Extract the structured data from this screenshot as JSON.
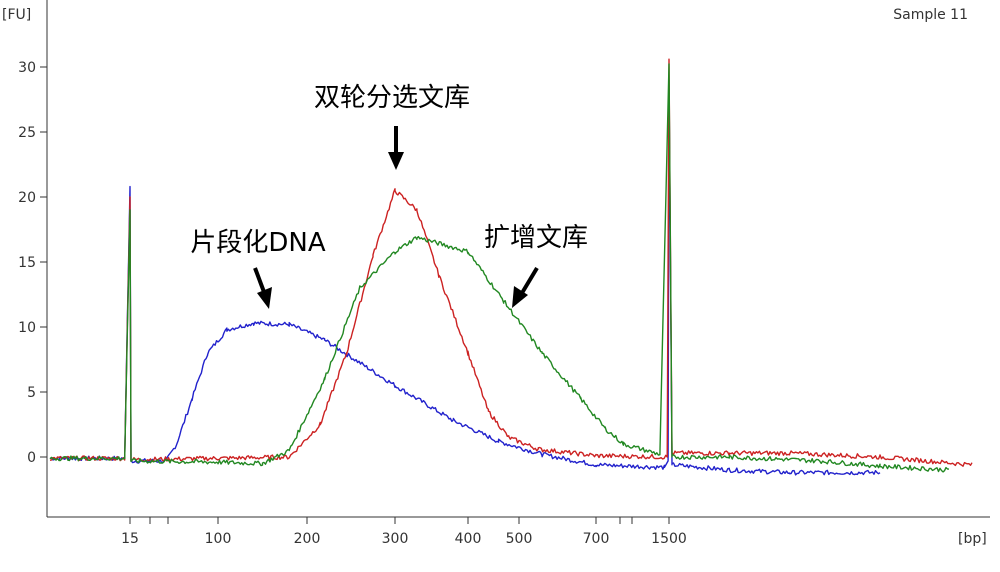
{
  "chart_data": {
    "type": "line",
    "title": "",
    "sample_label": "Sample 11",
    "ylabel": "[FU]",
    "xlabel": "[bp]",
    "ylim": [
      -4.5,
      34
    ],
    "yticks": [
      0,
      5,
      10,
      15,
      20,
      25,
      30
    ],
    "x_ticks": [
      {
        "label": "15",
        "minor": false
      },
      {
        "label": "",
        "minor": true
      },
      {
        "label": "",
        "minor": true
      },
      {
        "label": "100",
        "minor": false
      },
      {
        "label": "200",
        "minor": false
      },
      {
        "label": "300",
        "minor": false
      },
      {
        "label": "400",
        "minor": false
      },
      {
        "label": "500",
        "minor": false
      },
      {
        "label": "700",
        "minor": false
      },
      {
        "label": "",
        "minor": true
      },
      {
        "label": "",
        "minor": true
      },
      {
        "label": "1500",
        "minor": false
      }
    ],
    "grid": false,
    "series": [
      {
        "color": "#2222cc",
        "points": [
          [
            0,
            -0.1
          ],
          [
            14,
            -0.1
          ],
          [
            15,
            20.8
          ],
          [
            16,
            -0.3
          ],
          [
            50,
            -0.3
          ],
          [
            60,
            1.0
          ],
          [
            75,
            4.5
          ],
          [
            90,
            8.0
          ],
          [
            110,
            9.8
          ],
          [
            140,
            10.3
          ],
          [
            180,
            10.2
          ],
          [
            220,
            9.0
          ],
          [
            300,
            5.5
          ],
          [
            380,
            2.8
          ],
          [
            460,
            1.2
          ],
          [
            560,
            0.2
          ],
          [
            700,
            -0.6
          ],
          [
            1450,
            -0.8
          ],
          [
            1490,
            -0.3
          ],
          [
            1500,
            29.0
          ],
          [
            1510,
            -0.6
          ],
          [
            1700,
            -1.0
          ],
          [
            1900,
            -1.2
          ],
          [
            2200,
            -1.2
          ]
        ]
      },
      {
        "color": "#cc2222",
        "points": [
          [
            0,
            -0.1
          ],
          [
            14,
            -0.1
          ],
          [
            15,
            20.0
          ],
          [
            16,
            -0.2
          ],
          [
            100,
            -0.1
          ],
          [
            180,
            0.0
          ],
          [
            215,
            2.5
          ],
          [
            245,
            8.0
          ],
          [
            275,
            15.5
          ],
          [
            300,
            20.5
          ],
          [
            330,
            19.0
          ],
          [
            360,
            14.0
          ],
          [
            400,
            8.0
          ],
          [
            440,
            3.5
          ],
          [
            480,
            1.5
          ],
          [
            550,
            0.6
          ],
          [
            700,
            0.1
          ],
          [
            1480,
            0.0
          ],
          [
            1500,
            30.6
          ],
          [
            1510,
            0.3
          ],
          [
            1700,
            0.3
          ],
          [
            1900,
            0.3
          ],
          [
            2200,
            0.0
          ],
          [
            2600,
            -0.6
          ]
        ]
      },
      {
        "color": "#228822",
        "points": [
          [
            0,
            -0.1
          ],
          [
            14,
            -0.1
          ],
          [
            15,
            19.0
          ],
          [
            16,
            -0.3
          ],
          [
            100,
            -0.4
          ],
          [
            150,
            -0.5
          ],
          [
            180,
            0.5
          ],
          [
            220,
            6.0
          ],
          [
            260,
            13.0
          ],
          [
            300,
            15.8
          ],
          [
            330,
            16.9
          ],
          [
            400,
            15.8
          ],
          [
            470,
            12.0
          ],
          [
            560,
            8.0
          ],
          [
            660,
            4.5
          ],
          [
            800,
            2.2
          ],
          [
            1000,
            1.0
          ],
          [
            1400,
            0.2
          ],
          [
            1500,
            30.2
          ],
          [
            1510,
            0.0
          ],
          [
            1700,
            0.0
          ],
          [
            2000,
            -0.3
          ],
          [
            2200,
            -0.7
          ],
          [
            2500,
            -1.0
          ]
        ]
      }
    ],
    "annotations": [
      {
        "text": "双轮分选文库"
      },
      {
        "text": "片段化DNA"
      },
      {
        "text": "扩增文库"
      }
    ]
  }
}
